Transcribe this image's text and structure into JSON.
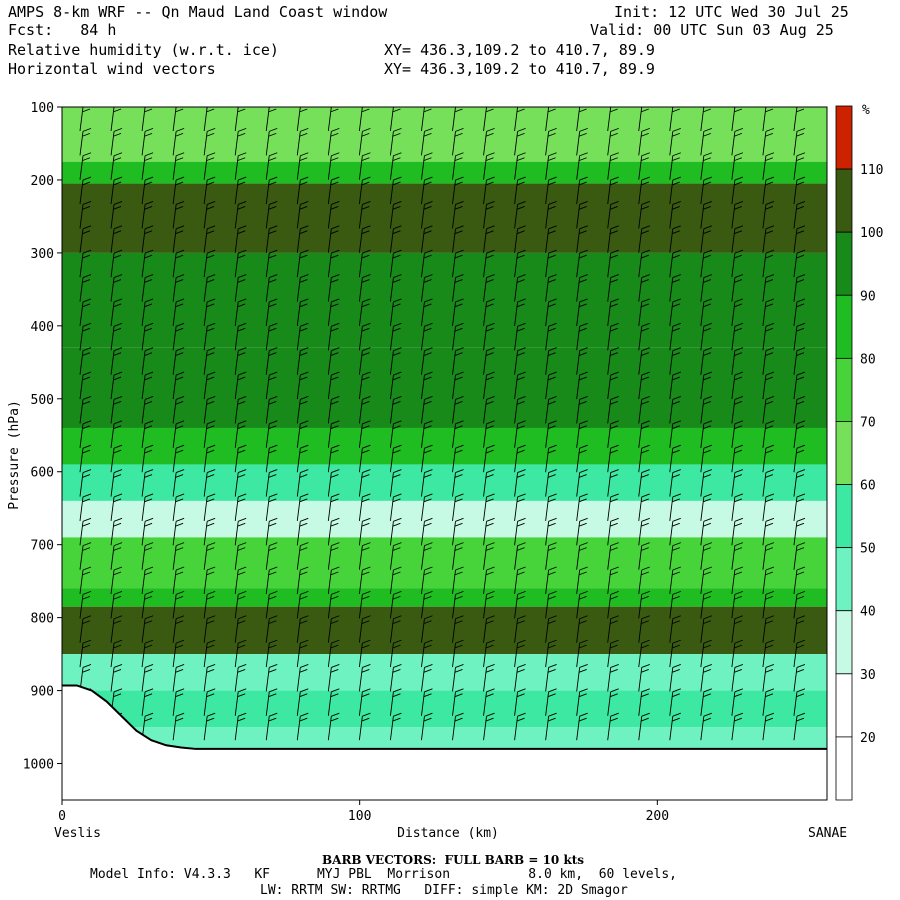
{
  "header": {
    "title": "AMPS 8-km WRF -- Qn Maud Land Coast window",
    "fcst": "Fcst:   84 h",
    "init": "Init: 12 UTC Wed 30 Jul 25",
    "valid": "Valid: 00 UTC Sun 03 Aug 25",
    "field1": "Relative humidity (w.r.t. ice)",
    "field2": "Horizontal wind vectors",
    "xy1": "XY= 436.3,109.2 to 410.7, 89.9",
    "xy2": "XY= 436.3,109.2 to 410.7, 89.9"
  },
  "footer": {
    "barb_note": "BARB VECTORS:  FULL BARB = 10 kts",
    "model_info_1": "Model Info: V4.3.3   KF      MYJ PBL  Morrison          8.0 km,  60 levels,",
    "model_info_2": "LW: RRTM SW: RRTMG   DIFF: simple KM: 2D Smagor"
  },
  "chart_data": {
    "type": "heatmap",
    "title": "Relative humidity (w.r.t. ice)",
    "xlabel": "Distance (km)",
    "ylabel": "Pressure (hPa)",
    "x_start_label": "Veslis",
    "x_end_label": "SANAE",
    "xlim": [
      0,
      257
    ],
    "ylim": [
      1050,
      100
    ],
    "x_ticks": [
      0,
      100,
      200
    ],
    "y_ticks": [
      100,
      200,
      300,
      400,
      500,
      600,
      700,
      800,
      900,
      1000
    ],
    "colorbar": {
      "unit": "%",
      "levels": [
        20,
        30,
        40,
        50,
        60,
        70,
        80,
        90,
        100,
        110
      ],
      "colors": [
        "#ffffff",
        "#ffffff",
        "#c6fae4",
        "#6ef2c2",
        "#3ce8a2",
        "#76e05a",
        "#46d43a",
        "#1fbd22",
        "#188a1a",
        "#395a10",
        "#cc2200"
      ]
    },
    "bands": [
      {
        "p_top": 100,
        "p_bot": 175,
        "rh": 65
      },
      {
        "p_top": 175,
        "p_bot": 205,
        "rh": 85
      },
      {
        "p_top": 205,
        "p_bot": 300,
        "rh": 100
      },
      {
        "p_top": 300,
        "p_bot": 430,
        "rh": 92
      },
      {
        "p_top": 430,
        "p_bot": 540,
        "rh": 95
      },
      {
        "p_top": 540,
        "p_bot": 590,
        "rh": 80
      },
      {
        "p_top": 590,
        "p_bot": 640,
        "rh": 55
      },
      {
        "p_top": 640,
        "p_bot": 690,
        "rh": 35
      },
      {
        "p_top": 690,
        "p_bot": 760,
        "rh": 75
      },
      {
        "p_top": 760,
        "p_bot": 785,
        "rh": 85
      },
      {
        "p_top": 785,
        "p_bot": 850,
        "rh": 100
      },
      {
        "p_top": 850,
        "p_bot": 900,
        "rh": 45
      },
      {
        "p_top": 900,
        "p_bot": 950,
        "rh": 55
      },
      {
        "p_top": 950,
        "p_bot": 985,
        "rh": 40
      }
    ],
    "terrain": {
      "x": [
        0,
        5,
        10,
        15,
        20,
        25,
        30,
        35,
        40,
        45,
        50,
        257
      ],
      "p": [
        893,
        893,
        900,
        915,
        935,
        955,
        968,
        975,
        978,
        980,
        980,
        980
      ]
    },
    "wind_barbs": {
      "columns": 24,
      "rows": 26,
      "full_barb_kts": 10
    }
  }
}
